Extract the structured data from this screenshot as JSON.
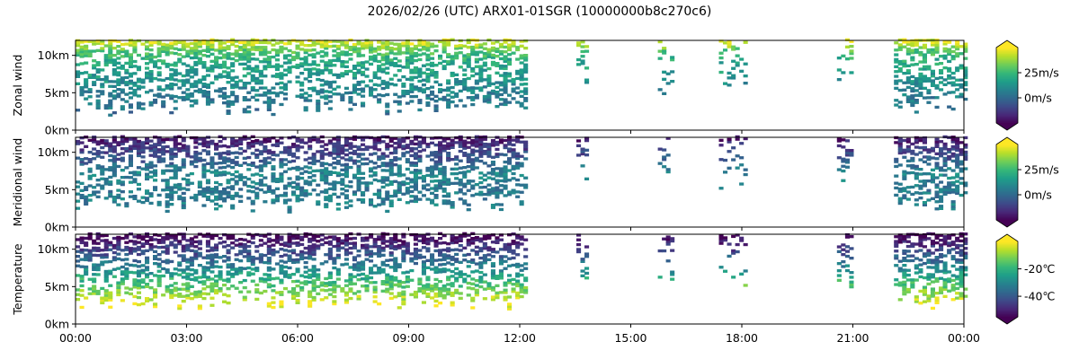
{
  "title": "2026/02/26 (UTC) ARX01-01SGR (10000000b8c270c6)",
  "x_ticks": [
    "00:00",
    "03:00",
    "06:00",
    "09:00",
    "12:00",
    "15:00",
    "18:00",
    "21:00",
    "00:00"
  ],
  "chart_data": {
    "type": "heatmap",
    "title": "2026/02/26 (UTC) ARX01-01SGR (10000000b8c270c6)",
    "x_unit": "hours UTC",
    "x_range": [
      0,
      24
    ],
    "x_ticks": [
      "00:00",
      "03:00",
      "06:00",
      "09:00",
      "12:00",
      "15:00",
      "18:00",
      "21:00",
      "00:00"
    ],
    "y_range_km": [
      0,
      12
    ],
    "y_ticks": [
      "0km",
      "5km",
      "10km"
    ],
    "colormap": "viridis",
    "coverage_note_hours": [
      [
        0,
        12.1
      ],
      [
        13.5,
        13.8
      ],
      [
        15.7,
        16.1
      ],
      [
        17.3,
        18.1
      ],
      [
        20.5,
        21.0
      ],
      [
        22.0,
        24.0
      ]
    ],
    "panels": [
      {
        "name": "zonal",
        "ylabel": "Zonal wind",
        "colorbar_range": [
          -25,
          50
        ],
        "colorbar_ticks": [
          "25m/s",
          "0m/s"
        ],
        "colorbar_tick_values": [
          25,
          0
        ],
        "profile_values": [
          [
            2,
            3
          ],
          [
            5,
            8
          ],
          [
            7,
            15
          ],
          [
            9,
            20
          ],
          [
            10.5,
            30
          ],
          [
            11.5,
            45
          ]
        ]
      },
      {
        "name": "meridional",
        "ylabel": "Meridional wind",
        "colorbar_range": [
          -25,
          50
        ],
        "colorbar_ticks": [
          "25m/s",
          "0m/s"
        ],
        "colorbar_tick_values": [
          25,
          0
        ],
        "profile_values": [
          [
            2,
            8
          ],
          [
            5,
            5
          ],
          [
            7,
            10
          ],
          [
            9,
            -5
          ],
          [
            10.5,
            -12
          ],
          [
            11.5,
            -20
          ]
        ]
      },
      {
        "name": "temperature",
        "ylabel": "Temperature",
        "colorbar_range": [
          -55,
          0
        ],
        "colorbar_ticks": [
          "-20℃",
          "-40℃"
        ],
        "colorbar_tick_values": [
          -20,
          -40
        ],
        "profile_values": [
          [
            2,
            0
          ],
          [
            5,
            -15
          ],
          [
            7,
            -28
          ],
          [
            9,
            -40
          ],
          [
            10.5,
            -48
          ],
          [
            11.5,
            -55
          ]
        ]
      }
    ]
  }
}
